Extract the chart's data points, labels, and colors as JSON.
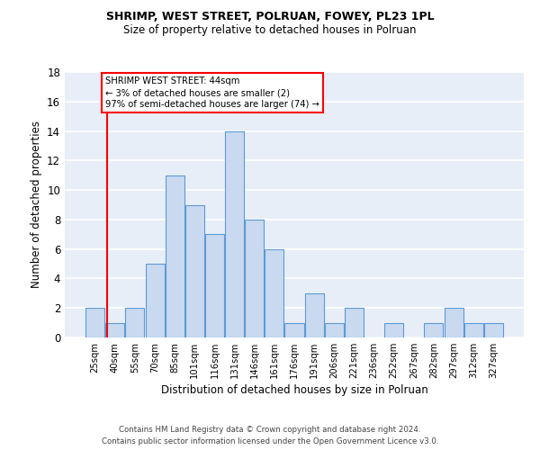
{
  "title": "SHRIMP, WEST STREET, POLRUAN, FOWEY, PL23 1PL",
  "subtitle": "Size of property relative to detached houses in Polruan",
  "xlabel": "Distribution of detached houses by size in Polruan",
  "ylabel": "Number of detached properties",
  "categories": [
    "25sqm",
    "40sqm",
    "55sqm",
    "70sqm",
    "85sqm",
    "101sqm",
    "116sqm",
    "131sqm",
    "146sqm",
    "161sqm",
    "176sqm",
    "191sqm",
    "206sqm",
    "221sqm",
    "236sqm",
    "252sqm",
    "267sqm",
    "282sqm",
    "297sqm",
    "312sqm",
    "327sqm"
  ],
  "values": [
    2,
    1,
    2,
    5,
    11,
    9,
    7,
    14,
    8,
    6,
    1,
    3,
    1,
    2,
    0,
    1,
    0,
    1,
    2,
    1,
    1
  ],
  "bar_color": "#c9d9f0",
  "bar_edge_color": "#5b9bd5",
  "background_color": "#e8eef8",
  "grid_color": "#ffffff",
  "vline_x_index": 1,
  "vline_color": "red",
  "annotation_box_text": "SHRIMP WEST STREET: 44sqm\n← 3% of detached houses are smaller (2)\n97% of semi-detached houses are larger (74) →",
  "annotation_box_color": "white",
  "annotation_box_edge_color": "red",
  "ylim": [
    0,
    18
  ],
  "yticks": [
    0,
    2,
    4,
    6,
    8,
    10,
    12,
    14,
    16,
    18
  ],
  "footer_line1": "Contains HM Land Registry data © Crown copyright and database right 2024.",
  "footer_line2": "Contains public sector information licensed under the Open Government Licence v3.0."
}
